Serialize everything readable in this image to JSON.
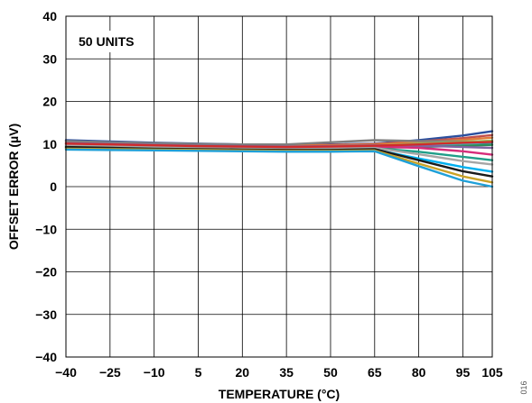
{
  "chart_data": {
    "type": "line",
    "xlabel": "TEMPERATURE (°C)",
    "ylabel": "OFFSET ERROR (µV)",
    "annotation": "50 UNITS",
    "side_note": "016",
    "xlim": [
      -40,
      105
    ],
    "ylim": [
      -40,
      40
    ],
    "x_ticks": [
      "−40",
      "−25",
      "−10",
      "5",
      "20",
      "35",
      "50",
      "65",
      "80",
      "95",
      "105"
    ],
    "x_tick_values": [
      -40,
      -25,
      -10,
      5,
      20,
      35,
      50,
      65,
      80,
      95,
      105
    ],
    "y_ticks": [
      "40",
      "30",
      "20",
      "10",
      "0",
      "−10",
      "−20",
      "−30",
      "−40"
    ],
    "y_tick_values": [
      40,
      30,
      20,
      10,
      0,
      -10,
      -20,
      -30,
      -40
    ],
    "grid": true,
    "x": [
      -40,
      -25,
      -10,
      5,
      20,
      35,
      50,
      65,
      80,
      95,
      105
    ],
    "series": [
      {
        "color": "#2b4f9e",
        "values": [
          10.9,
          10.6,
          10.3,
          10.1,
          9.9,
          9.8,
          9.9,
          10.1,
          10.9,
          12.0,
          13.0
        ]
      },
      {
        "color": "#c0504d",
        "values": [
          10.6,
          10.3,
          10.1,
          9.9,
          9.8,
          9.7,
          9.8,
          10.0,
          10.6,
          11.4,
          12.1
        ]
      },
      {
        "color": "#e07b39",
        "values": [
          10.3,
          10.1,
          9.9,
          9.8,
          9.6,
          9.6,
          9.7,
          9.9,
          10.4,
          11.0,
          11.5
        ]
      },
      {
        "color": "#7f7f7f",
        "values": [
          10.7,
          10.4,
          10.2,
          10.0,
          9.9,
          9.9,
          10.4,
          10.9,
          10.7,
          10.6,
          10.6
        ]
      },
      {
        "color": "#9bbb59",
        "values": [
          10.0,
          9.8,
          9.6,
          9.4,
          9.3,
          9.2,
          9.3,
          9.6,
          10.1,
          10.5,
          10.8
        ]
      },
      {
        "color": "#4bacc6",
        "values": [
          9.6,
          9.4,
          9.2,
          9.1,
          9.0,
          8.9,
          9.0,
          9.3,
          9.7,
          10.1,
          10.3
        ]
      },
      {
        "color": "#2e8b57",
        "values": [
          9.2,
          9.0,
          8.9,
          8.8,
          8.7,
          8.6,
          8.8,
          9.1,
          9.3,
          9.6,
          9.8
        ]
      },
      {
        "color": "#8064a2",
        "values": [
          10.2,
          10.0,
          9.8,
          9.6,
          9.5,
          9.4,
          9.5,
          9.7,
          9.6,
          9.3,
          9.1
        ]
      },
      {
        "color": "#d62d7a",
        "values": [
          9.9,
          9.7,
          9.5,
          9.4,
          9.3,
          9.2,
          9.2,
          9.4,
          9.1,
          8.3,
          7.5
        ]
      },
      {
        "color": "#1f9e89",
        "values": [
          9.4,
          9.2,
          9.0,
          8.9,
          8.8,
          8.7,
          8.8,
          9.0,
          8.2,
          7.0,
          6.2
        ]
      },
      {
        "color": "#a6a6a6",
        "values": [
          9.7,
          9.5,
          9.3,
          9.2,
          9.1,
          9.0,
          9.0,
          9.1,
          7.6,
          6.0,
          5.2
        ]
      },
      {
        "color": "#00b0f0",
        "values": [
          9.0,
          8.9,
          8.8,
          8.7,
          8.6,
          8.5,
          8.6,
          8.7,
          6.6,
          4.6,
          3.5
        ]
      },
      {
        "color": "#1b1b1b",
        "values": [
          9.3,
          9.1,
          8.9,
          8.8,
          8.7,
          8.6,
          8.6,
          8.8,
          6.2,
          3.6,
          2.4
        ]
      },
      {
        "color": "#c9a227",
        "values": [
          8.9,
          8.8,
          8.7,
          8.6,
          8.5,
          8.4,
          8.4,
          8.5,
          5.4,
          2.4,
          1.0
        ]
      },
      {
        "color": "#1fa0d8",
        "values": [
          8.7,
          8.6,
          8.5,
          8.4,
          8.3,
          8.2,
          8.2,
          8.3,
          4.8,
          1.4,
          0.0
        ]
      },
      {
        "color": "#d02b2b",
        "values": [
          10.1,
          9.9,
          9.7,
          9.5,
          9.4,
          9.3,
          9.4,
          9.6,
          9.9,
          10.3,
          10.5
        ]
      }
    ]
  }
}
